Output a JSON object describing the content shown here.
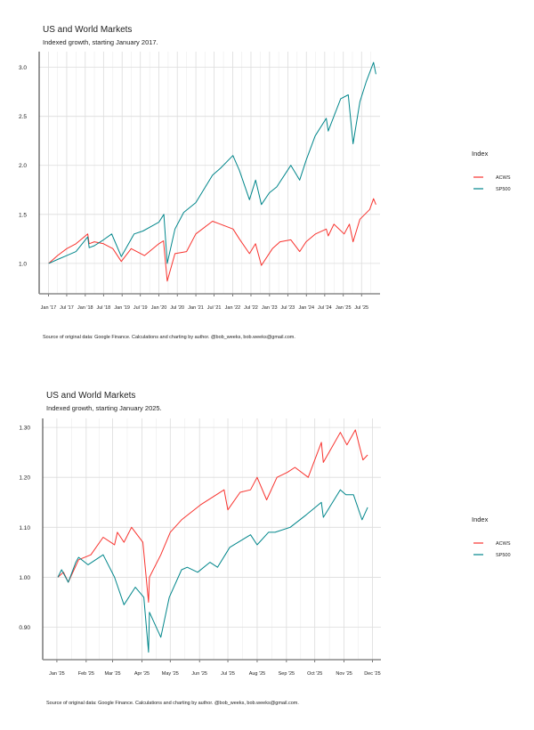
{
  "colors": {
    "ACWS": "#F8332E",
    "SP500": "#00868B"
  },
  "chart_data": [
    {
      "type": "line",
      "title": "US and World Markets",
      "subtitle": "Indexed growth, starting January 2017.",
      "caption": "Source of original data: Google Finance. Calculations and charting by author. @bob_weeks, bob.weeks@gmail.com.",
      "legend_title": "Index",
      "legend_position": "right",
      "grid": true,
      "xlim": [
        "2016-10-01",
        "2025-12-31"
      ],
      "ylim": [
        0.69,
        3.16
      ],
      "y_ticks": [
        1.0,
        1.5,
        2.0,
        2.5,
        3.0
      ],
      "y_tick_labels": [
        "1.0",
        "1.5",
        "2.0",
        "2.5",
        "3.0"
      ],
      "x_ticks": [
        "2017-01-01",
        "2017-07-01",
        "2018-01-01",
        "2018-07-01",
        "2019-01-01",
        "2019-07-01",
        "2020-01-01",
        "2020-07-01",
        "2021-01-01",
        "2021-07-01",
        "2022-01-01",
        "2022-07-01",
        "2023-01-01",
        "2023-07-01",
        "2024-01-01",
        "2024-07-01",
        "2025-01-01",
        "2025-07-01"
      ],
      "x_tick_labels": [
        "Jan '17",
        "Jul '17",
        "Jan '18",
        "Jul '18",
        "Jan '19",
        "Jul '19",
        "Jan '20",
        "Jul '20",
        "Jan '21",
        "Jul '21",
        "Jan '22",
        "Jul '22",
        "Jan '23",
        "Jul '23",
        "Jan '24",
        "Jul '24",
        "Jan '25",
        "Jul '25"
      ],
      "series": [
        {
          "name": "ACWS",
          "x": [
            "2017-01-03",
            "2017-04-01",
            "2017-07-01",
            "2017-10-01",
            "2018-01-26",
            "2018-02-09",
            "2018-04-01",
            "2018-07-01",
            "2018-10-01",
            "2018-12-24",
            "2019-04-01",
            "2019-08-10",
            "2019-12-31",
            "2020-02-15",
            "2020-03-23",
            "2020-06-08",
            "2020-10-01",
            "2020-12-31",
            "2021-06-15",
            "2021-09-01",
            "2022-01-05",
            "2022-03-08",
            "2022-06-16",
            "2022-08-15",
            "2022-10-12",
            "2023-01-30",
            "2023-04-15",
            "2023-07-31",
            "2023-10-27",
            "2023-12-29",
            "2024-04-01",
            "2024-07-16",
            "2024-08-05",
            "2024-09-30",
            "2025-01-10",
            "2025-03-03",
            "2025-04-08",
            "2025-06-15",
            "2025-09-20",
            "2025-10-28",
            "2025-11-20"
          ],
          "y": [
            1.0,
            1.08,
            1.15,
            1.2,
            1.3,
            1.2,
            1.22,
            1.2,
            1.15,
            1.02,
            1.15,
            1.08,
            1.2,
            1.23,
            0.82,
            1.1,
            1.12,
            1.3,
            1.43,
            1.4,
            1.35,
            1.25,
            1.1,
            1.2,
            0.98,
            1.15,
            1.22,
            1.24,
            1.12,
            1.22,
            1.3,
            1.35,
            1.28,
            1.4,
            1.3,
            1.4,
            1.22,
            1.45,
            1.55,
            1.66,
            1.6
          ]
        },
        {
          "name": "SP500",
          "x": [
            "2017-01-03",
            "2017-04-01",
            "2017-07-01",
            "2017-10-01",
            "2018-01-26",
            "2018-02-09",
            "2018-04-01",
            "2018-07-01",
            "2018-09-20",
            "2018-12-24",
            "2019-04-30",
            "2019-07-26",
            "2019-12-31",
            "2020-02-19",
            "2020-03-23",
            "2020-06-08",
            "2020-09-02",
            "2020-12-31",
            "2021-06-15",
            "2021-09-02",
            "2022-01-03",
            "2022-03-08",
            "2022-06-16",
            "2022-08-16",
            "2022-10-12",
            "2022-12-30",
            "2023-03-13",
            "2023-07-31",
            "2023-10-27",
            "2023-12-29",
            "2024-03-28",
            "2024-07-16",
            "2024-08-05",
            "2024-12-06",
            "2025-02-19",
            "2025-04-08",
            "2025-06-15",
            "2025-08-15",
            "2025-10-28",
            "2025-11-20"
          ],
          "y": [
            1.0,
            1.04,
            1.08,
            1.12,
            1.27,
            1.16,
            1.18,
            1.24,
            1.3,
            1.07,
            1.3,
            1.33,
            1.42,
            1.5,
            1.0,
            1.35,
            1.52,
            1.62,
            1.9,
            1.97,
            2.1,
            1.95,
            1.65,
            1.85,
            1.6,
            1.72,
            1.78,
            2.0,
            1.85,
            2.05,
            2.3,
            2.48,
            2.35,
            2.68,
            2.72,
            2.22,
            2.65,
            2.85,
            3.05,
            2.93
          ]
        }
      ]
    },
    {
      "type": "line",
      "title": "US and World Markets",
      "subtitle": "Indexed growth, starting January 2025.",
      "caption": "Source of original data: Google Finance. Calculations and charting by author. @bob_weeks, bob.weeks@gmail.com.",
      "legend_title": "Index",
      "legend_position": "right",
      "grid": true,
      "xlim": [
        "2024-12-17",
        "2025-12-10"
      ],
      "ylim": [
        0.835,
        1.318
      ],
      "y_ticks": [
        0.9,
        1.0,
        1.1,
        1.2,
        1.3
      ],
      "y_tick_labels": [
        "0.90",
        "1.00",
        "1.10",
        "1.20",
        "1.30"
      ],
      "x_ticks": [
        "2025-01-01",
        "2025-02-01",
        "2025-03-01",
        "2025-04-01",
        "2025-05-01",
        "2025-06-01",
        "2025-07-01",
        "2025-08-01",
        "2025-09-01",
        "2025-10-01",
        "2025-11-01",
        "2025-12-01"
      ],
      "x_tick_labels": [
        "Jan '25",
        "Feb '25",
        "Mar '25",
        "Apr '25",
        "May '25",
        "Jun '25",
        "Jul '25",
        "Aug '25",
        "Sep '25",
        "Oct '25",
        "Nov '25",
        "Dec '25"
      ],
      "series": [
        {
          "name": "ACWS",
          "x": [
            "2025-01-02",
            "2025-01-08",
            "2025-01-13",
            "2025-01-24",
            "2025-02-06",
            "2025-02-19",
            "2025-03-03",
            "2025-03-06",
            "2025-03-13",
            "2025-03-21",
            "2025-04-02",
            "2025-04-08",
            "2025-04-09",
            "2025-04-21",
            "2025-05-01",
            "2025-05-13",
            "2025-06-02",
            "2025-06-27",
            "2025-07-01",
            "2025-07-14",
            "2025-07-25",
            "2025-08-01",
            "2025-08-11",
            "2025-08-22",
            "2025-09-02",
            "2025-09-10",
            "2025-09-24",
            "2025-10-08",
            "2025-10-10",
            "2025-10-28",
            "2025-11-04",
            "2025-11-13",
            "2025-11-21",
            "2025-11-26"
          ],
          "y": [
            1.0,
            1.01,
            0.99,
            1.035,
            1.045,
            1.08,
            1.065,
            1.09,
            1.07,
            1.1,
            1.07,
            0.95,
            1.0,
            1.045,
            1.09,
            1.115,
            1.145,
            1.175,
            1.135,
            1.17,
            1.175,
            1.2,
            1.155,
            1.2,
            1.21,
            1.22,
            1.2,
            1.27,
            1.23,
            1.29,
            1.265,
            1.295,
            1.235,
            1.245
          ]
        },
        {
          "name": "SP500",
          "x": [
            "2025-01-02",
            "2025-01-06",
            "2025-01-13",
            "2025-01-21",
            "2025-01-24",
            "2025-02-03",
            "2025-02-19",
            "2025-03-03",
            "2025-03-13",
            "2025-03-25",
            "2025-04-03",
            "2025-04-08",
            "2025-04-09",
            "2025-04-21",
            "2025-04-30",
            "2025-05-13",
            "2025-05-19",
            "2025-05-30",
            "2025-06-12",
            "2025-06-20",
            "2025-07-03",
            "2025-07-25",
            "2025-08-01",
            "2025-08-13",
            "2025-08-20",
            "2025-09-05",
            "2025-09-22",
            "2025-10-08",
            "2025-10-10",
            "2025-10-28",
            "2025-11-03",
            "2025-11-11",
            "2025-11-20",
            "2025-11-26"
          ],
          "y": [
            1.0,
            1.015,
            0.99,
            1.03,
            1.04,
            1.025,
            1.045,
            1.0,
            0.945,
            0.98,
            0.96,
            0.85,
            0.93,
            0.88,
            0.96,
            1.015,
            1.02,
            1.01,
            1.03,
            1.02,
            1.06,
            1.085,
            1.065,
            1.09,
            1.09,
            1.1,
            1.125,
            1.15,
            1.12,
            1.175,
            1.165,
            1.165,
            1.115,
            1.14
          ]
        }
      ]
    }
  ]
}
